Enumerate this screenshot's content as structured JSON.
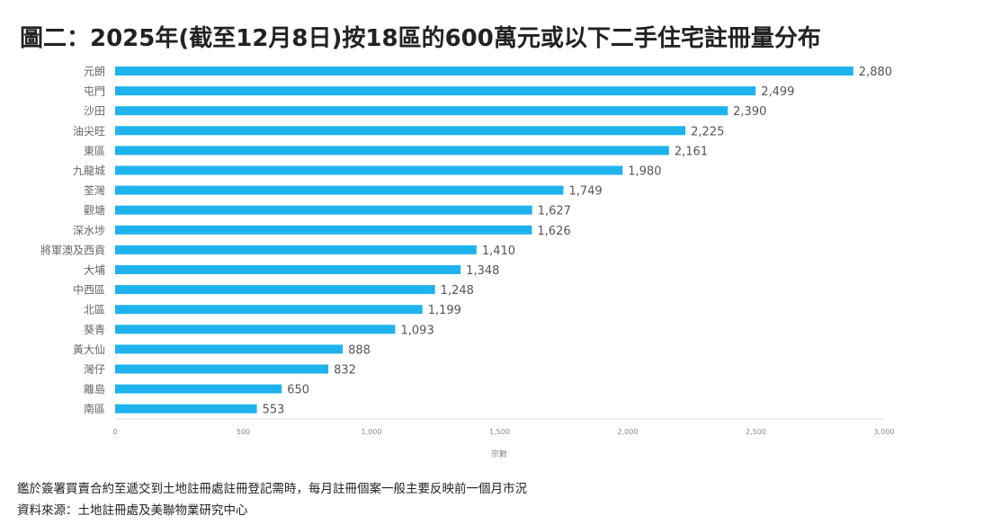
{
  "title": "圖二：2025年(截至12月8日)按18區的600萬元或以下二手住宅註冊量分布",
  "notes": [
    "鑑於簽署買賣合約至遞交到土地註冊處註冊登記需時，每月註冊個案一般主要反映前一個月市況",
    "資料來源：土地註冊處及美聯物業研究中心"
  ],
  "chart_data": {
    "type": "bar",
    "orientation": "horizontal",
    "title": "圖二：2025年(截至12月8日)按18區的600萬元或以下二手住宅註冊量分布",
    "categories": [
      "元朗",
      "屯門",
      "沙田",
      "油尖旺",
      "東區",
      "九龍城",
      "荃灣",
      "觀塘",
      "深水埗",
      "將軍澳及西貢",
      "大埔",
      "中西區",
      "北區",
      "葵青",
      "黃大仙",
      "灣仔",
      "離島",
      "南區"
    ],
    "values": [
      2880,
      2499,
      2390,
      2225,
      2161,
      1980,
      1749,
      1627,
      1626,
      1410,
      1348,
      1248,
      1199,
      1093,
      888,
      832,
      650,
      553
    ],
    "value_labels": [
      "2,880",
      "2,499",
      "2,390",
      "2,225",
      "2,161",
      "1,980",
      "1,749",
      "1,627",
      "1,626",
      "1,410",
      "1,348",
      "1,248",
      "1,199",
      "1,093",
      "888",
      "832",
      "650",
      "553"
    ],
    "xlabel": "宗數",
    "ylabel": "",
    "xlim": [
      0,
      3000
    ],
    "xticks": [
      0,
      500,
      1000,
      1500,
      2000,
      2500,
      3000
    ],
    "xtick_labels": [
      "0",
      "500",
      "1,000",
      "1,500",
      "2,000",
      "2,500",
      "3,000"
    ],
    "grid": false,
    "legend": "none",
    "bar_color": "#1fb3ee"
  }
}
